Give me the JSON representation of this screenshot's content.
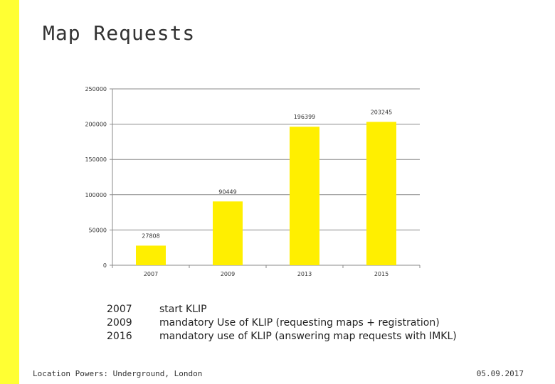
{
  "slide": {
    "title": "Map Requests",
    "accent_color": "#ffff33",
    "footer_left": "Location Powers: Underground, London",
    "footer_right": "05.09.2017"
  },
  "notes": [
    {
      "year": "2007",
      "text": "start KLIP"
    },
    {
      "year": "2009",
      "text": "mandatory Use of KLIP (requesting maps + registration)"
    },
    {
      "year": "2016",
      "text": "mandatory use of KLIP (answering map requests with IMKL)"
    }
  ],
  "chart_data": {
    "type": "bar",
    "categories": [
      "2007",
      "2009",
      "2013",
      "2015"
    ],
    "values": [
      27808,
      90449,
      196399,
      203245
    ],
    "data_labels": [
      "27808",
      "90449",
      "196399",
      "203245"
    ],
    "yticks": [
      0,
      50000,
      100000,
      150000,
      200000,
      250000
    ],
    "ytick_labels": [
      "0",
      "50000",
      "100000",
      "150000",
      "200000",
      "250000"
    ],
    "ylim": [
      0,
      250000
    ],
    "grid": true,
    "bar_color": "#ffef00",
    "title": "",
    "xlabel": "",
    "ylabel": ""
  }
}
